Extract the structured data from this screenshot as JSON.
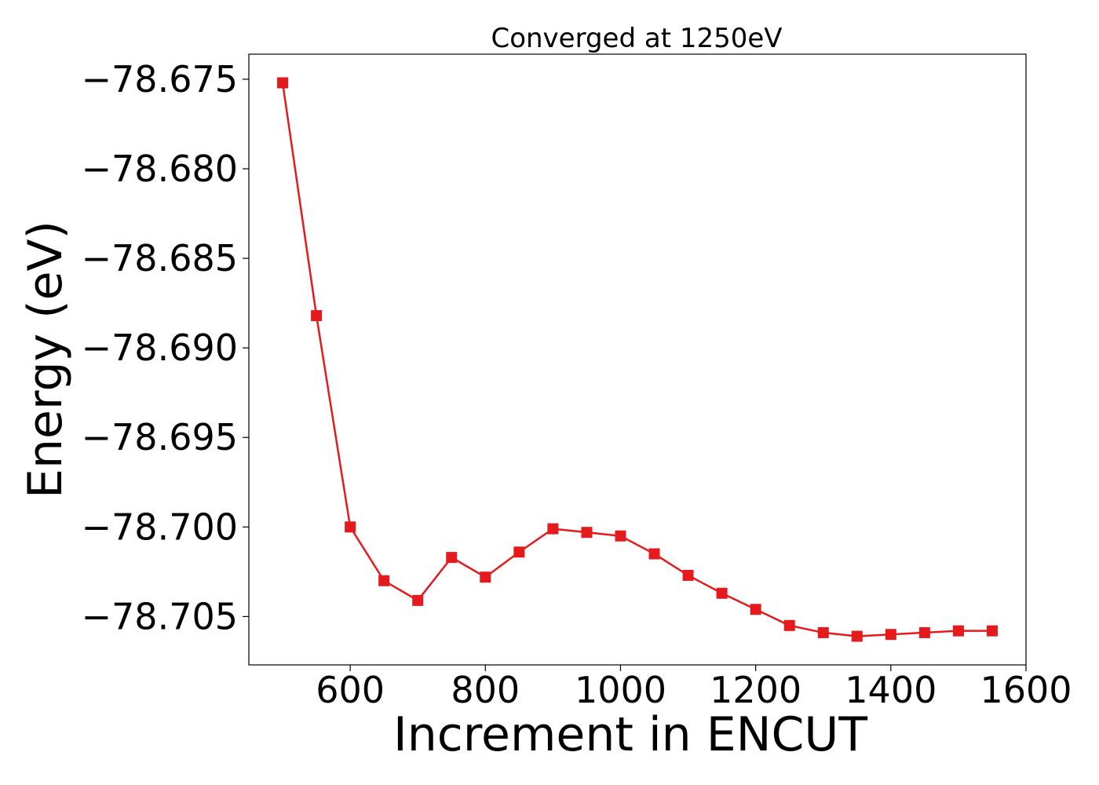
{
  "chart_data": {
    "type": "line",
    "title": "Converged at 1250eV",
    "xlabel": "Increment in ENCUT",
    "ylabel": "Energy (eV)",
    "xlim": [
      450,
      1600
    ],
    "ylim": [
      -78.7077,
      -78.6736
    ],
    "xticks": [
      600,
      800,
      1000,
      1200,
      1400,
      1600
    ],
    "xtick_labels": [
      "600",
      "800",
      "1000",
      "1200",
      "1400",
      "1600"
    ],
    "yticks": [
      -78.675,
      -78.68,
      -78.685,
      -78.69,
      -78.695,
      -78.7,
      -78.705
    ],
    "ytick_labels": [
      "−78.675",
      "−78.680",
      "−78.685",
      "−78.690",
      "−78.695",
      "−78.700",
      "−78.705"
    ],
    "grid": false,
    "series": [
      {
        "color": "#e41a1c",
        "marker": "square",
        "x": [
          500,
          550,
          600,
          650,
          700,
          750,
          800,
          850,
          900,
          950,
          1000,
          1050,
          1100,
          1150,
          1200,
          1250,
          1300,
          1350,
          1400,
          1450,
          1500,
          1550
        ],
        "y": [
          -78.6752,
          -78.6882,
          -78.7,
          -78.703,
          -78.7041,
          -78.7017,
          -78.7028,
          -78.7014,
          -78.7001,
          -78.7003,
          -78.7005,
          -78.7015,
          -78.7027,
          -78.7037,
          -78.7046,
          -78.7055,
          -78.7059,
          -78.7061,
          -78.706,
          -78.7059,
          -78.7058,
          -78.7058
        ]
      }
    ]
  }
}
